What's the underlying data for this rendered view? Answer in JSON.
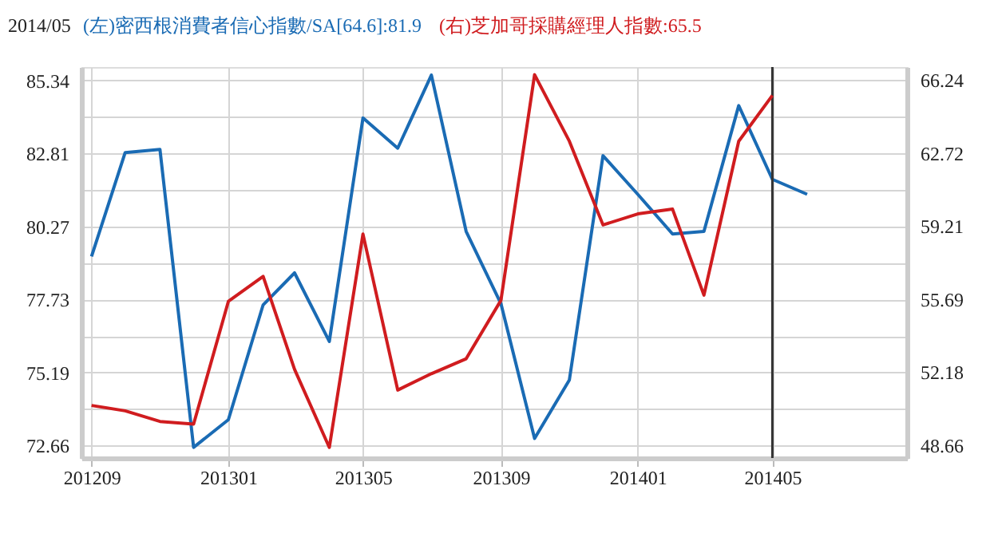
{
  "chart_data": {
    "type": "line",
    "title": "2014/05",
    "x": [
      "2012-09",
      "2012-10",
      "2012-11",
      "2012-12",
      "2013-01",
      "2013-02",
      "2013-03",
      "2013-04",
      "2013-05",
      "2013-06",
      "2013-07",
      "2013-08",
      "2013-09",
      "2013-10",
      "2013-11",
      "2013-12",
      "2014-01",
      "2014-02",
      "2014-03",
      "2014-04",
      "2014-05",
      "2014-06"
    ],
    "series": [
      {
        "name": "(左)密西根消費者信心指數/SA[64.6]:81.9",
        "color": "#1a6bb4",
        "values": [
          79.22,
          82.83,
          82.94,
          72.59,
          73.55,
          77.54,
          78.65,
          76.27,
          84.03,
          82.98,
          85.52,
          80.09,
          77.58,
          72.9,
          74.93,
          82.72,
          81.38,
          80.0,
          80.09,
          84.46,
          81.9,
          81.38
        ]
      },
      {
        "name": "(右)芝加哥採購經理人指數:65.5",
        "color": "#d01c1f",
        "axis": "y2",
        "values": [
          50.58,
          50.32,
          49.81,
          49.68,
          55.59,
          56.79,
          52.32,
          48.56,
          58.83,
          51.32,
          52.11,
          52.83,
          55.64,
          66.5,
          63.3,
          59.27,
          59.8,
          60.03,
          55.89,
          63.3,
          65.5,
          null
        ]
      }
    ],
    "xlim": [
      "2012-08-23",
      "2014-08-29"
    ],
    "xticks": [
      {
        "value": "2012-09",
        "label": "201209"
      },
      {
        "value": "2013-01",
        "label": "201301"
      },
      {
        "value": "2013-05",
        "label": "201305"
      },
      {
        "value": "2013-09",
        "label": "201309"
      },
      {
        "value": "2014-01",
        "label": "201401"
      },
      {
        "value": "2014-05",
        "label": "201405"
      }
    ],
    "ylim": [
      72.22,
      85.8
    ],
    "yticks": [
      72.66,
      {
        "value": 73.93,
        "label": null
      },
      75.19,
      {
        "value": 76.46,
        "label": null
      },
      77.73,
      {
        "value": 79.0,
        "label": null
      },
      80.27,
      {
        "value": 81.54,
        "label": null
      },
      82.81,
      {
        "value": 84.08,
        "label": null
      },
      85.34
    ],
    "y2lim": [
      48.05,
      66.87
    ],
    "y2ticks": [
      48.66,
      52.18,
      55.69,
      59.21,
      62.72,
      66.24
    ],
    "ref_lines": [
      {
        "axis": "x",
        "value": "2014-05",
        "color": "#333333"
      }
    ],
    "grid": true,
    "legend": "top left",
    "marker": "none",
    "line_style": "solid"
  }
}
